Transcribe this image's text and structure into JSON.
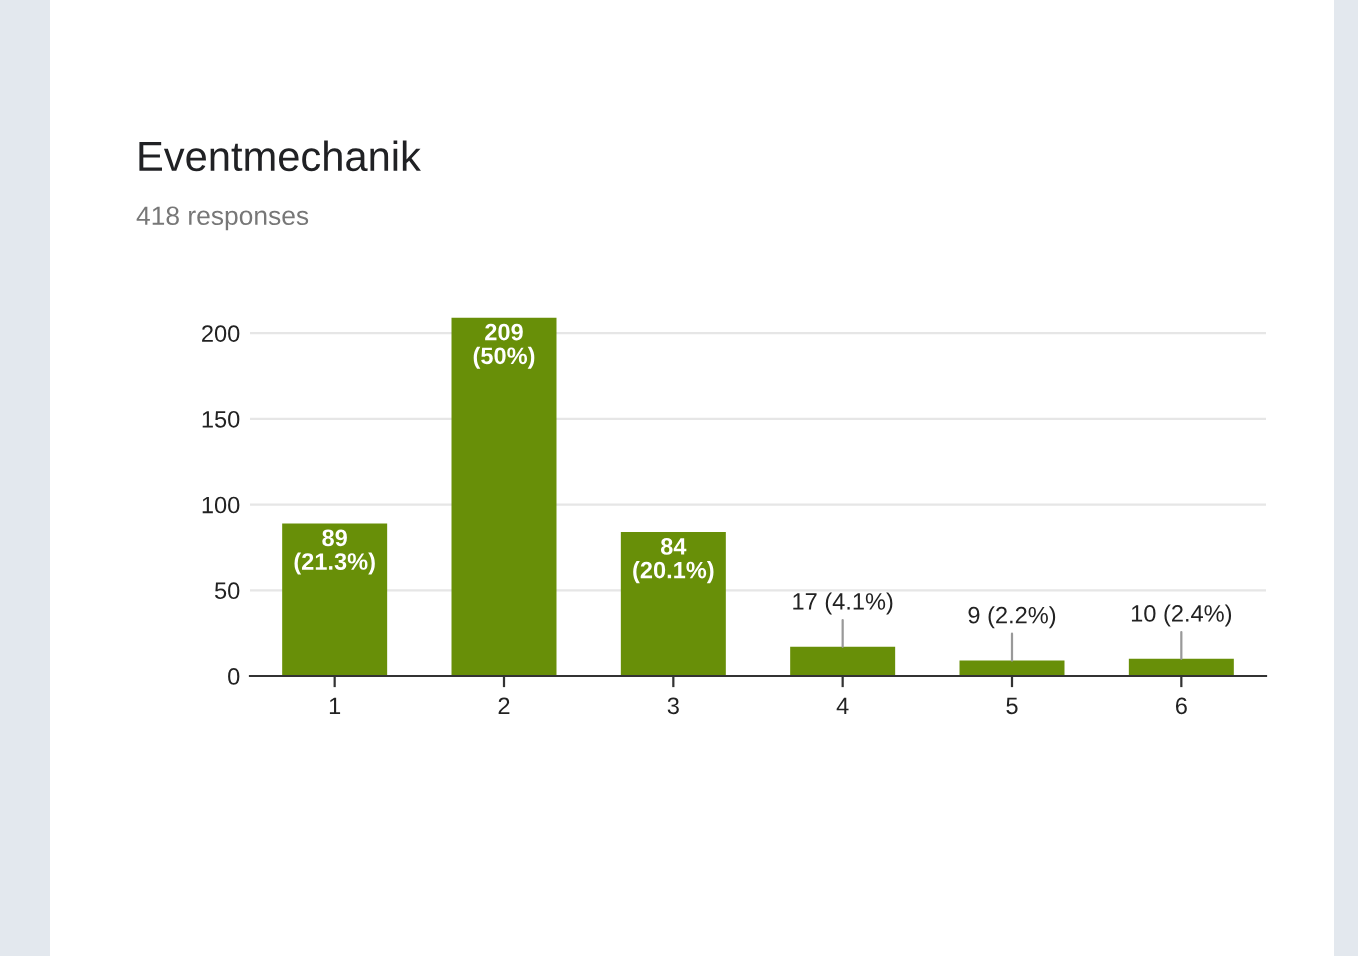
{
  "chart_data": {
    "type": "bar",
    "title": "Eventmechanik",
    "subtitle": "418 responses",
    "categories": [
      "1",
      "2",
      "3",
      "4",
      "5",
      "6"
    ],
    "values": [
      89,
      209,
      84,
      17,
      9,
      10
    ],
    "value_labels": [
      "89\n(21.3%)",
      "209\n(50%)",
      "84\n(20.1%)",
      "17 (4.1%)",
      "9 (2.2%)",
      "10 (2.4%)"
    ],
    "color": "#688f08",
    "ylim": [
      0,
      210
    ],
    "yticks": [
      0,
      50,
      100,
      150,
      200
    ],
    "grid": "y",
    "legend": false
  }
}
